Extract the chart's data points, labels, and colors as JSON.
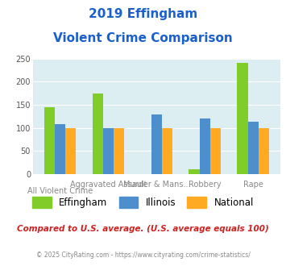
{
  "title_line1": "2019 Effingham",
  "title_line2": "Violent Crime Comparison",
  "categories": [
    "All Violent Crime",
    "Aggravated Assault",
    "Murder & Mans...",
    "Robbery",
    "Rape"
  ],
  "x_top_labels": [
    "",
    "Aggravated Assault",
    "Murder & Mans...",
    "Robbery",
    "Rape"
  ],
  "x_bot_labels": [
    "All Violent Crime",
    "",
    "",
    "",
    ""
  ],
  "series": {
    "Effingham": [
      145,
      175,
      0,
      11,
      240
    ],
    "Illinois": [
      108,
      100,
      130,
      120,
      113
    ],
    "National": [
      100,
      100,
      100,
      100,
      100
    ]
  },
  "colors": {
    "Effingham": "#80cc28",
    "Illinois": "#4d8fcc",
    "National": "#ffaa22"
  },
  "ylim": [
    0,
    250
  ],
  "yticks": [
    0,
    50,
    100,
    150,
    200,
    250
  ],
  "plot_bg": "#ddeef2",
  "title_color": "#1a5fcc",
  "footer_note": "Compared to U.S. average. (U.S. average equals 100)",
  "footer_note_color": "#cc2222",
  "copyright_text": "© 2025 CityRating.com - https://www.cityrating.com/crime-statistics/",
  "copyright_color": "#888888",
  "grid_color": "#ffffff",
  "bar_width": 0.22,
  "series_order": [
    "Effingham",
    "Illinois",
    "National"
  ]
}
